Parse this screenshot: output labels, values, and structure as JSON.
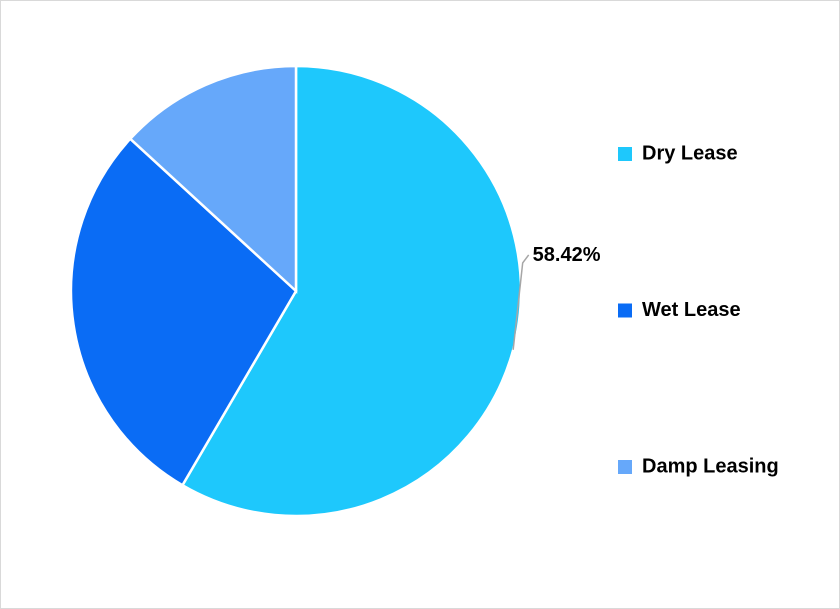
{
  "chart_data": {
    "type": "pie",
    "categories": [
      "Dry Lease",
      "Wet Lease",
      "Damp Leasing"
    ],
    "values": [
      58.42,
      28.4,
      13.18
    ],
    "value_labels": [
      "58.42%",
      null,
      null
    ],
    "colors": [
      "#1ec8fc",
      "#0a6cf5",
      "#66a8fa"
    ],
    "legend": "right"
  }
}
